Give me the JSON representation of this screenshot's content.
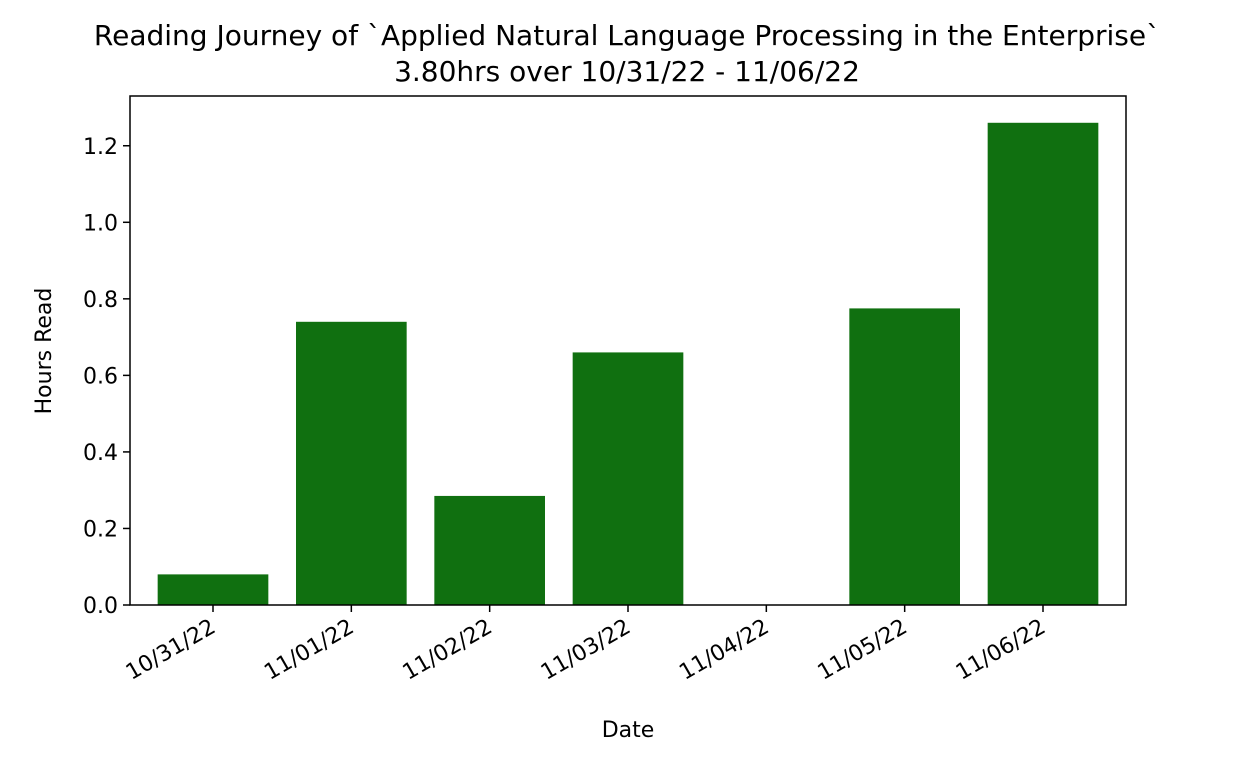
{
  "chart_data": {
    "type": "bar",
    "title": "Reading Journey of `Applied Natural Language Processing in the Enterprise`",
    "subtitle": "3.80hrs over 10/31/22 - 11/06/22",
    "xlabel": "Date",
    "ylabel": "Hours Read",
    "categories": [
      "10/31/22",
      "11/01/22",
      "11/02/22",
      "11/03/22",
      "11/04/22",
      "11/05/22",
      "11/06/22"
    ],
    "values": [
      0.08,
      0.74,
      0.285,
      0.66,
      0.0,
      0.775,
      1.26
    ],
    "ylim": [
      0,
      1.33
    ],
    "yticks": [
      0.0,
      0.2,
      0.4,
      0.6,
      0.8,
      1.0,
      1.2
    ],
    "ytick_labels": [
      "0.0",
      "0.2",
      "0.4",
      "0.6",
      "0.8",
      "1.0",
      "1.2"
    ],
    "bar_color": "#107010",
    "grid": false,
    "legend": false
  }
}
